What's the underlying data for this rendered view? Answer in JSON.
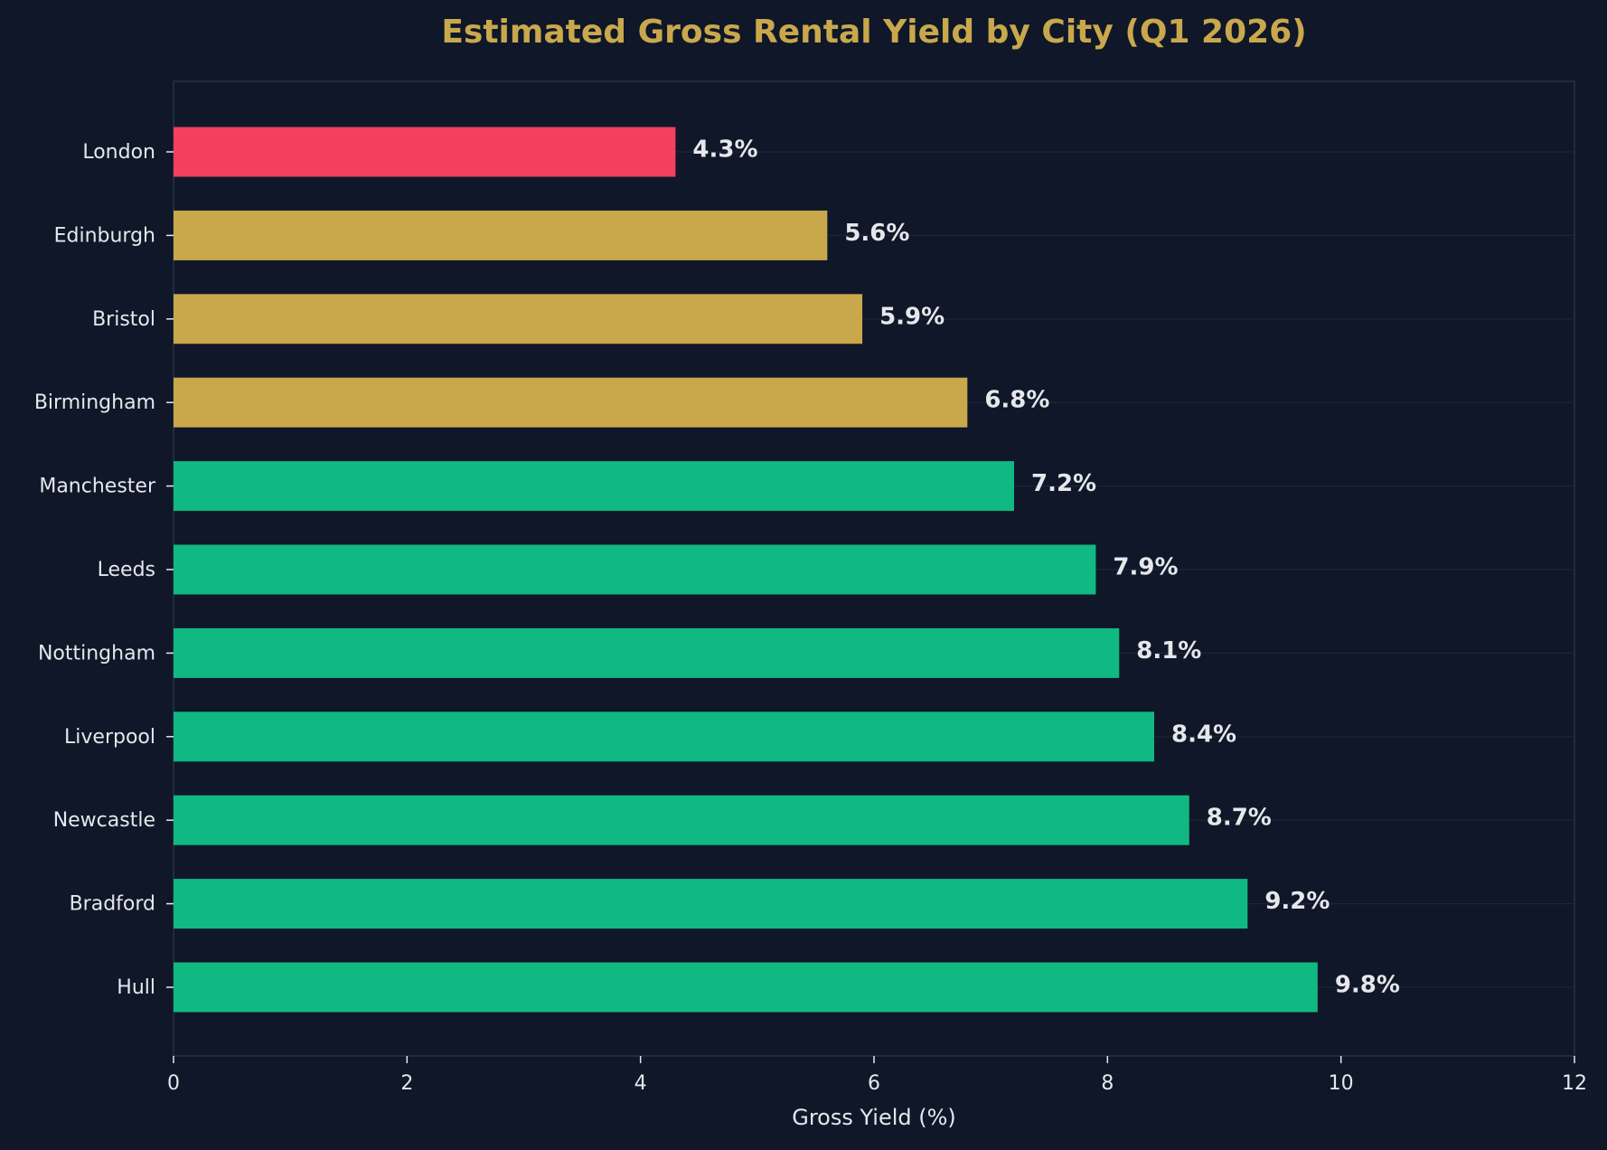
{
  "chart_data": {
    "type": "barh",
    "title": "Estimated Gross Rental Yield by City (Q1 2026)",
    "x_label": "Gross Yield (%)",
    "categories": [
      "London",
      "Edinburgh",
      "Bristol",
      "Birmingham",
      "Manchester",
      "Leeds",
      "Nottingham",
      "Liverpool",
      "Newcastle",
      "Bradford",
      "Hull"
    ],
    "values": [
      4.3,
      5.6,
      5.9,
      6.8,
      7.2,
      7.9,
      8.1,
      8.4,
      8.7,
      9.2,
      9.8
    ],
    "value_labels": [
      "4.3%",
      "5.6%",
      "5.9%",
      "6.8%",
      "7.2%",
      "7.9%",
      "8.1%",
      "8.4%",
      "8.7%",
      "9.2%",
      "9.8%"
    ],
    "colors": [
      "#f43f5e",
      "#c9a84c",
      "#c9a84c",
      "#c9a84c",
      "#10b981",
      "#10b981",
      "#10b981",
      "#10b981",
      "#10b981",
      "#10b981",
      "#10b981"
    ],
    "xlim": [
      0,
      12
    ],
    "xticks": [
      0,
      2,
      4,
      6,
      8,
      10,
      12
    ],
    "grid": "y"
  }
}
